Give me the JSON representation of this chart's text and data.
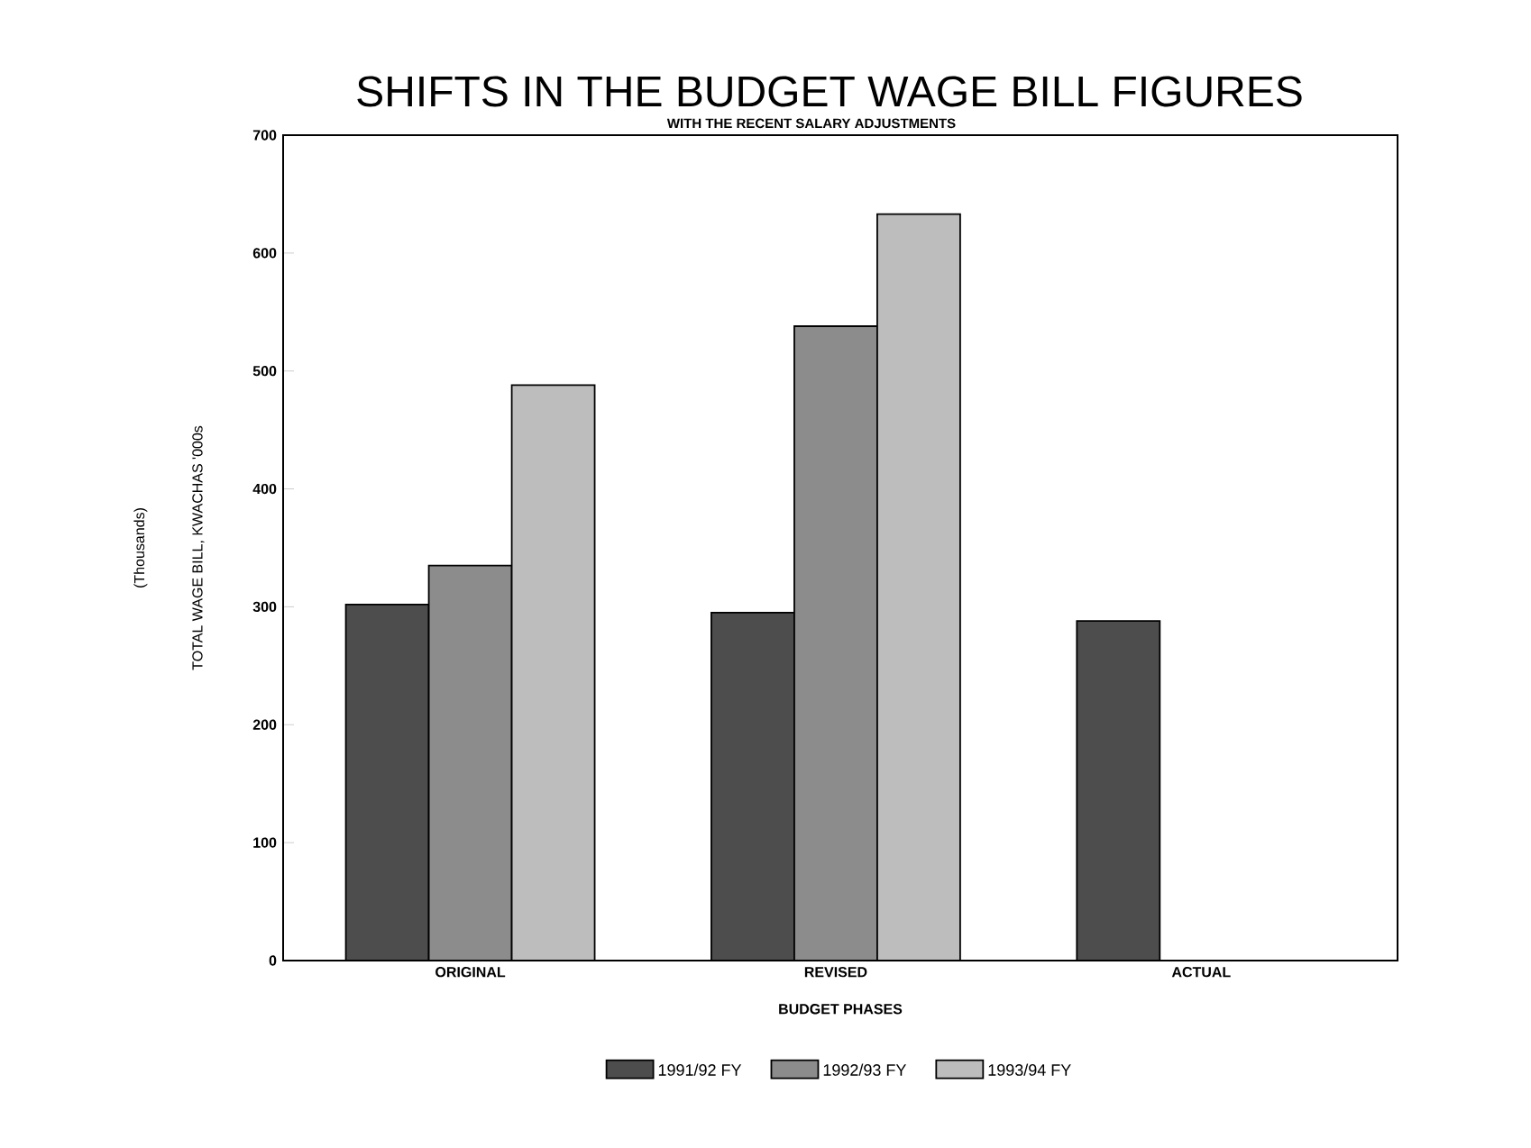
{
  "chart_data": {
    "type": "bar",
    "title": "SHIFTS IN THE BUDGET WAGE BILL FIGURES",
    "subtitle": "WITH THE RECENT SALARY ADJUSTMENTS",
    "xlabel": "BUDGET PHASES",
    "ylabel": "TOTAL WAGE BILL, KWACHAS '000s",
    "annotations": [
      "(Thousands)"
    ],
    "categories": [
      "ORIGINAL",
      "REVISED",
      "ACTUAL"
    ],
    "series": [
      {
        "name": "1991/92 FY",
        "color": "#4d4d4d",
        "values": [
          302,
          295,
          288
        ]
      },
      {
        "name": "1992/93 FY",
        "color": "#8c8c8c",
        "values": [
          335,
          538,
          null
        ]
      },
      {
        "name": "1993/94 FY",
        "color": "#bdbdbd",
        "values": [
          488,
          633,
          null
        ]
      }
    ],
    "ylim": [
      0,
      700
    ],
    "yticks": [
      0,
      100,
      200,
      300,
      400,
      500,
      600,
      700
    ],
    "grid": false,
    "legend": "bottom"
  }
}
